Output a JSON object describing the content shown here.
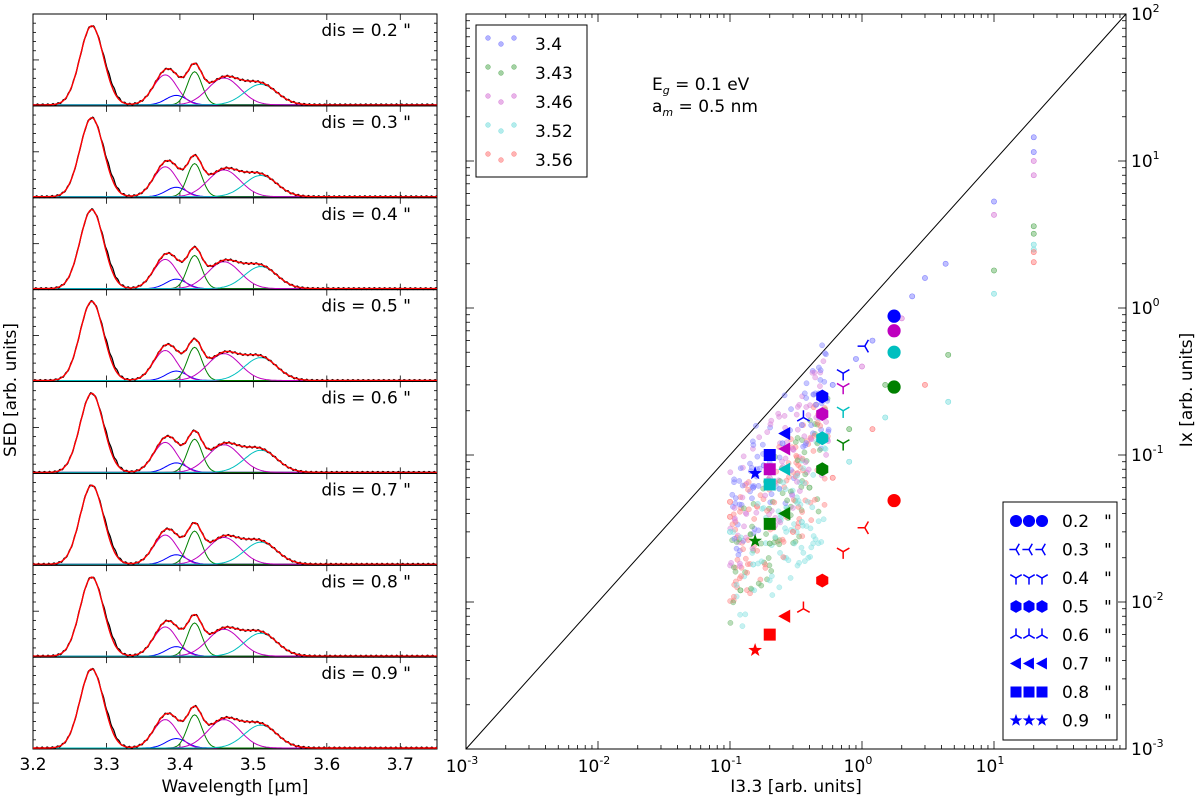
{
  "colors": {
    "blue": "#0000ff",
    "green": "#008000",
    "magenta": "#bf00bf",
    "cyan": "#00bfbf",
    "red": "#ff0000",
    "black": "#000000",
    "pt_blue": "#8080ff",
    "pt_green": "#66b366",
    "pt_magenta": "#d980d9",
    "pt_cyan": "#80e0e0",
    "pt_red": "#ff8080"
  },
  "chart_data": [
    {
      "type": "line",
      "panel": "left",
      "xlabel": "Wavelength [μm]",
      "ylabel": "SED [arb. units]",
      "xlim": [
        3.2,
        3.75
      ],
      "xticks": [
        "3.2",
        "3.3",
        "3.4",
        "3.5",
        "3.6",
        "3.7"
      ],
      "xtick_values": [
        3.2,
        3.3,
        3.4,
        3.5,
        3.6,
        3.7
      ],
      "components": [
        {
          "name": "3.28",
          "center": 3.28,
          "sigma": 0.016,
          "color": "blue"
        },
        {
          "name": "3.40",
          "center": 3.395,
          "sigma": 0.014,
          "color": "blue"
        },
        {
          "name": "3.38",
          "center": 3.38,
          "sigma": 0.016,
          "color": "magenta"
        },
        {
          "name": "3.42",
          "center": 3.42,
          "sigma": 0.01,
          "color": "green"
        },
        {
          "name": "3.46",
          "center": 3.46,
          "sigma": 0.022,
          "color": "magenta"
        },
        {
          "name": "3.51",
          "center": 3.51,
          "sigma": 0.022,
          "color": "cyan"
        }
      ],
      "subplots": [
        {
          "label": "dis = 0.2 \"",
          "amplitudes": [
            1.0,
            0.12,
            0.38,
            0.42,
            0.34,
            0.26
          ]
        },
        {
          "label": "dis = 0.3 \"",
          "amplitudes": [
            1.0,
            0.12,
            0.38,
            0.42,
            0.34,
            0.27
          ]
        },
        {
          "label": "dis = 0.4 \"",
          "amplitudes": [
            1.0,
            0.12,
            0.37,
            0.42,
            0.34,
            0.28
          ]
        },
        {
          "label": "dis = 0.5 \"",
          "amplitudes": [
            1.0,
            0.12,
            0.38,
            0.42,
            0.34,
            0.29
          ]
        },
        {
          "label": "dis = 0.6 \"",
          "amplitudes": [
            1.0,
            0.12,
            0.38,
            0.42,
            0.35,
            0.28
          ]
        },
        {
          "label": "dis = 0.7 \"",
          "amplitudes": [
            1.0,
            0.12,
            0.37,
            0.42,
            0.34,
            0.28
          ]
        },
        {
          "label": "dis = 0.8 \"",
          "amplitudes": [
            1.0,
            0.12,
            0.37,
            0.42,
            0.34,
            0.29
          ]
        },
        {
          "label": "dis = 0.9 \"",
          "amplitudes": [
            1.0,
            0.12,
            0.36,
            0.42,
            0.36,
            0.29
          ]
        }
      ]
    },
    {
      "type": "scatter",
      "panel": "right",
      "xlabel": "I3.3 [arb. units]",
      "ylabel": "Ix [arb. units]",
      "xscale": "log",
      "yscale": "log",
      "xlim": [
        0.001,
        100
      ],
      "ylim": [
        0.001,
        100
      ],
      "xticks": [
        {
          "v": 0.001,
          "base": "10",
          "exp": "-3"
        },
        {
          "v": 0.01,
          "base": "10",
          "exp": "-2"
        },
        {
          "v": 0.1,
          "base": "10",
          "exp": "-1"
        },
        {
          "v": 1,
          "base": "10",
          "exp": "0"
        },
        {
          "v": 10,
          "base": "10",
          "exp": "1"
        }
      ],
      "yticks": [
        {
          "v": 0.001,
          "base": "10",
          "exp": "-3"
        },
        {
          "v": 0.01,
          "base": "10",
          "exp": "-2"
        },
        {
          "v": 0.1,
          "base": "10",
          "exp": "-1"
        },
        {
          "v": 1,
          "base": "10",
          "exp": "0"
        },
        {
          "v": 10,
          "base": "10",
          "exp": "1"
        },
        {
          "v": 100,
          "base": "10",
          "exp": "2"
        }
      ],
      "diagonal": "y = x",
      "annotation": {
        "line1_a": "E",
        "line1_sub": "g",
        "line1_b": " = 0.1 eV",
        "line2_a": "a",
        "line2_sub": "m",
        "line2_b": " = 0.5 nm"
      },
      "legend_bands": {
        "position": "top-left",
        "entries": [
          {
            "label": "3.4",
            "color": "pt_blue"
          },
          {
            "label": "3.43",
            "color": "pt_green"
          },
          {
            "label": "3.46",
            "color": "pt_magenta"
          },
          {
            "label": "3.52",
            "color": "pt_cyan"
          },
          {
            "label": "3.56",
            "color": "pt_red"
          }
        ]
      },
      "legend_dis": {
        "position": "bottom-right",
        "entries": [
          {
            "label": "0.2",
            "unit": "\"",
            "marker": "circle"
          },
          {
            "label": "0.3",
            "unit": "\"",
            "marker": "tri_left"
          },
          {
            "label": "0.4",
            "unit": "\"",
            "marker": "tri_down"
          },
          {
            "label": "0.5",
            "unit": "\"",
            "marker": "hexagon"
          },
          {
            "label": "0.6",
            "unit": "\"",
            "marker": "tri_up"
          },
          {
            "label": "0.7",
            "unit": "\"",
            "marker": "triangle_left"
          },
          {
            "label": "0.8",
            "unit": "\"",
            "marker": "square"
          },
          {
            "label": "0.9",
            "unit": "\"",
            "marker": "star"
          }
        ]
      },
      "big_markers": [
        {
          "dis": "0.2",
          "marker": "circle",
          "color": "blue",
          "x": 1.75,
          "y": 0.88
        },
        {
          "dis": "0.2",
          "marker": "circle",
          "color": "magenta",
          "x": 1.75,
          "y": 0.7
        },
        {
          "dis": "0.2",
          "marker": "circle",
          "color": "cyan",
          "x": 1.75,
          "y": 0.5
        },
        {
          "dis": "0.2",
          "marker": "circle",
          "color": "green",
          "x": 1.75,
          "y": 0.29
        },
        {
          "dis": "0.2",
          "marker": "circle",
          "color": "red",
          "x": 1.75,
          "y": 0.049
        },
        {
          "dis": "0.3",
          "marker": "tri_left",
          "color": "blue",
          "x": 1.05,
          "y": 0.55
        },
        {
          "dis": "0.3",
          "marker": "tri_left",
          "color": "red",
          "x": 1.05,
          "y": 0.032
        },
        {
          "dis": "0.4",
          "marker": "tri_down",
          "color": "blue",
          "x": 0.72,
          "y": 0.36
        },
        {
          "dis": "0.4",
          "marker": "tri_down",
          "color": "magenta",
          "x": 0.72,
          "y": 0.29
        },
        {
          "dis": "0.4",
          "marker": "tri_down",
          "color": "cyan",
          "x": 0.72,
          "y": 0.2
        },
        {
          "dis": "0.4",
          "marker": "tri_down",
          "color": "green",
          "x": 0.72,
          "y": 0.12
        },
        {
          "dis": "0.4",
          "marker": "tri_down",
          "color": "red",
          "x": 0.72,
          "y": 0.022
        },
        {
          "dis": "0.5",
          "marker": "hexagon",
          "color": "blue",
          "x": 0.5,
          "y": 0.25
        },
        {
          "dis": "0.5",
          "marker": "hexagon",
          "color": "magenta",
          "x": 0.5,
          "y": 0.19
        },
        {
          "dis": "0.5",
          "marker": "hexagon",
          "color": "cyan",
          "x": 0.5,
          "y": 0.13
        },
        {
          "dis": "0.5",
          "marker": "hexagon",
          "color": "green",
          "x": 0.5,
          "y": 0.08
        },
        {
          "dis": "0.5",
          "marker": "hexagon",
          "color": "red",
          "x": 0.5,
          "y": 0.014
        },
        {
          "dis": "0.6",
          "marker": "tri_up",
          "color": "blue",
          "x": 0.36,
          "y": 0.18
        },
        {
          "dis": "0.6",
          "marker": "tri_up",
          "color": "red",
          "x": 0.36,
          "y": 0.009
        },
        {
          "dis": "0.7",
          "marker": "triangle_left",
          "color": "blue",
          "x": 0.26,
          "y": 0.14
        },
        {
          "dis": "0.7",
          "marker": "triangle_left",
          "color": "magenta",
          "x": 0.26,
          "y": 0.11
        },
        {
          "dis": "0.7",
          "marker": "triangle_left",
          "color": "cyan",
          "x": 0.26,
          "y": 0.08
        },
        {
          "dis": "0.7",
          "marker": "triangle_left",
          "color": "green",
          "x": 0.26,
          "y": 0.04
        },
        {
          "dis": "0.7",
          "marker": "triangle_left",
          "color": "red",
          "x": 0.26,
          "y": 0.008
        },
        {
          "dis": "0.8",
          "marker": "square",
          "color": "blue",
          "x": 0.2,
          "y": 0.1
        },
        {
          "dis": "0.8",
          "marker": "square",
          "color": "magenta",
          "x": 0.2,
          "y": 0.08
        },
        {
          "dis": "0.8",
          "marker": "square",
          "color": "cyan",
          "x": 0.2,
          "y": 0.063
        },
        {
          "dis": "0.8",
          "marker": "square",
          "color": "green",
          "x": 0.2,
          "y": 0.034
        },
        {
          "dis": "0.8",
          "marker": "square",
          "color": "red",
          "x": 0.2,
          "y": 0.006
        },
        {
          "dis": "0.9",
          "marker": "star",
          "color": "blue",
          "x": 0.155,
          "y": 0.075
        },
        {
          "dis": "0.9",
          "marker": "star",
          "color": "green",
          "x": 0.155,
          "y": 0.026
        },
        {
          "dis": "0.9",
          "marker": "star",
          "color": "red",
          "x": 0.155,
          "y": 0.0047
        }
      ],
      "small_points": [
        {
          "band": "3.4",
          "x": 20,
          "y": 14.5
        },
        {
          "band": "3.4",
          "x": 20,
          "y": 11.5
        },
        {
          "band": "3.4",
          "x": 10,
          "y": 5.3
        },
        {
          "band": "3.4",
          "x": 4.3,
          "y": 2.0
        },
        {
          "band": "3.4",
          "x": 3.0,
          "y": 1.6
        },
        {
          "band": "3.4",
          "x": 2.4,
          "y": 1.2
        },
        {
          "band": "3.4",
          "x": 1.2,
          "y": 0.6
        },
        {
          "band": "3.4",
          "x": 0.9,
          "y": 0.45
        },
        {
          "band": "3.4",
          "x": 0.6,
          "y": 0.3
        },
        {
          "band": "3.4",
          "x": 0.45,
          "y": 0.22
        },
        {
          "band": "3.4",
          "x": 0.35,
          "y": 0.16
        },
        {
          "band": "3.4",
          "x": 0.25,
          "y": 0.12
        },
        {
          "band": "3.4",
          "x": 0.18,
          "y": 0.085
        },
        {
          "band": "3.4",
          "x": 0.15,
          "y": 0.06
        },
        {
          "band": "3.46",
          "x": 20,
          "y": 10.0
        },
        {
          "band": "3.46",
          "x": 20,
          "y": 8.0
        },
        {
          "band": "3.46",
          "x": 10,
          "y": 4.3
        },
        {
          "band": "3.46",
          "x": 2.0,
          "y": 0.85
        },
        {
          "band": "3.46",
          "x": 1.0,
          "y": 0.4
        },
        {
          "band": "3.46",
          "x": 0.5,
          "y": 0.2
        },
        {
          "band": "3.46",
          "x": 0.3,
          "y": 0.11
        },
        {
          "band": "3.46",
          "x": 0.2,
          "y": 0.07
        },
        {
          "band": "3.43",
          "x": 20,
          "y": 3.6
        },
        {
          "band": "3.43",
          "x": 20,
          "y": 3.2
        },
        {
          "band": "3.43",
          "x": 10,
          "y": 1.8
        },
        {
          "band": "3.43",
          "x": 4.5,
          "y": 0.48
        },
        {
          "band": "3.43",
          "x": 1.5,
          "y": 0.3
        },
        {
          "band": "3.43",
          "x": 0.8,
          "y": 0.15
        },
        {
          "band": "3.43",
          "x": 0.4,
          "y": 0.06
        },
        {
          "band": "3.43",
          "x": 0.2,
          "y": 0.025
        },
        {
          "band": "3.43",
          "x": 0.12,
          "y": 0.012
        },
        {
          "band": "3.52",
          "x": 20,
          "y": 2.7
        },
        {
          "band": "3.52",
          "x": 20,
          "y": 2.5
        },
        {
          "band": "3.52",
          "x": 10,
          "y": 1.25
        },
        {
          "band": "3.52",
          "x": 4.5,
          "y": 0.23
        },
        {
          "band": "3.52",
          "x": 1.5,
          "y": 0.18
        },
        {
          "band": "3.52",
          "x": 0.8,
          "y": 0.09
        },
        {
          "band": "3.52",
          "x": 0.35,
          "y": 0.035
        },
        {
          "band": "3.52",
          "x": 0.15,
          "y": 0.018
        },
        {
          "band": "3.52",
          "x": 0.1,
          "y": 0.03
        },
        {
          "band": "3.56",
          "x": 20,
          "y": 2.4
        },
        {
          "band": "3.56",
          "x": 20,
          "y": 2.05
        },
        {
          "band": "3.56",
          "x": 3.0,
          "y": 0.3
        },
        {
          "band": "3.56",
          "x": 1.2,
          "y": 0.15
        },
        {
          "band": "3.56",
          "x": 0.6,
          "y": 0.07
        },
        {
          "band": "3.56",
          "x": 0.3,
          "y": 0.03
        },
        {
          "band": "3.56",
          "x": 0.1,
          "y": 0.038
        },
        {
          "band": "3.56",
          "x": 0.1,
          "y": 0.048
        }
      ],
      "cloud": {
        "seed": 7,
        "count": 420,
        "band_weights": [
          1,
          1,
          1,
          1,
          1
        ]
      }
    }
  ]
}
